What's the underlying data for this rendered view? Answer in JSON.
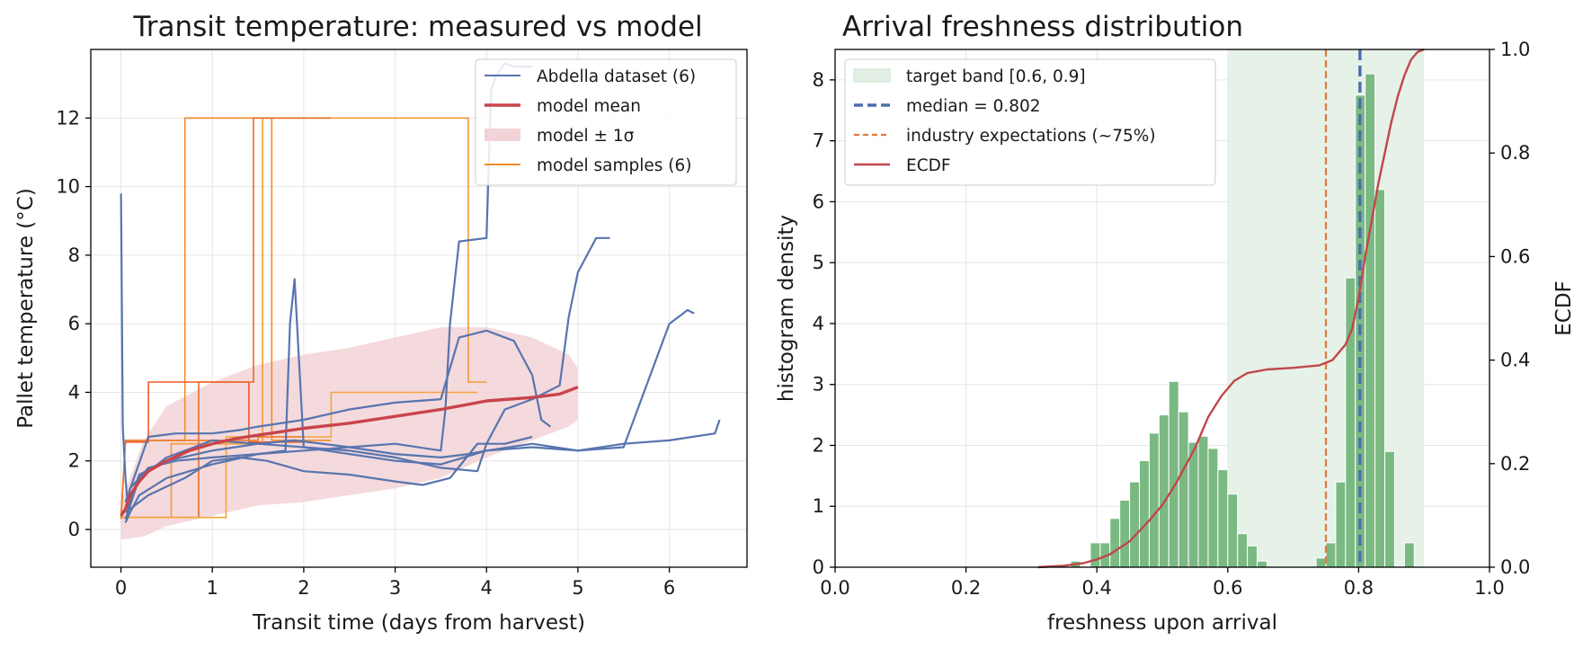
{
  "chart_data": [
    {
      "type": "line",
      "title": "Transit temperature: measured vs model",
      "xlabel": "Transit time (days from harvest)",
      "ylabel": "Pallet temperature (°C)",
      "xlim": [
        -0.33,
        6.85
      ],
      "ylim": [
        -1.1,
        14.0
      ],
      "xticks": [
        0,
        1,
        2,
        3,
        4,
        5,
        6
      ],
      "yticks": [
        0,
        2,
        4,
        6,
        8,
        10,
        12
      ],
      "grid": true,
      "legend_position": "top-right",
      "legend": [
        {
          "label": "Abdella dataset (6)",
          "kind": "thin-line",
          "color": "#5874ae"
        },
        {
          "label": "model mean",
          "kind": "thick-line",
          "color": "#c8444b"
        },
        {
          "label": "model ± 1σ",
          "kind": "patch",
          "color": "#f2d3d7"
        },
        {
          "label": "model samples (6)",
          "kind": "thin-line",
          "color": "#f28c28"
        }
      ],
      "colors": {
        "measured": "#5874ae",
        "mean": "#c8444b",
        "band": "#f2d3d7",
        "samples": [
          "#f28c28",
          "#ec5a2a",
          "#f59a34",
          "#e86a26",
          "#f4a53c",
          "#ef7a2a"
        ]
      },
      "band": {
        "x": [
          0,
          0.25,
          0.5,
          1.0,
          1.5,
          2.0,
          2.5,
          3.0,
          3.5,
          4.0,
          4.5,
          4.9,
          5.0
        ],
        "lower": [
          -0.3,
          -0.2,
          0.1,
          0.4,
          0.7,
          0.8,
          1.0,
          1.2,
          1.5,
          2.1,
          2.6,
          3.0,
          3.2
        ],
        "upper": [
          0.8,
          2.6,
          3.6,
          4.3,
          4.8,
          5.1,
          5.3,
          5.6,
          5.9,
          5.9,
          5.6,
          5.1,
          4.7
        ]
      },
      "mean": {
        "x": [
          0,
          0.05,
          0.1,
          0.2,
          0.3,
          0.5,
          0.75,
          1.0,
          1.25,
          1.5,
          2.0,
          2.5,
          3.0,
          3.5,
          4.0,
          4.5,
          4.8,
          5.0
        ],
        "y": [
          0.4,
          0.6,
          1.0,
          1.4,
          1.7,
          2.0,
          2.3,
          2.5,
          2.65,
          2.75,
          2.95,
          3.1,
          3.3,
          3.5,
          3.75,
          3.85,
          3.95,
          4.15
        ]
      },
      "measured": [
        {
          "x": [
            0,
            0.02,
            0.05,
            0.08,
            0.1,
            0.2,
            0.5,
            1.0,
            1.5,
            1.9,
            2.5,
            3.0,
            3.5,
            3.8,
            4.0,
            4.5,
            5.0,
            5.5,
            6.0,
            6.5,
            6.55
          ],
          "y": [
            9.8,
            3.0,
            1.5,
            0.5,
            0.8,
            1.6,
            2.0,
            2.3,
            2.5,
            2.6,
            2.4,
            2.2,
            2.1,
            2.2,
            2.3,
            2.4,
            2.3,
            2.5,
            2.6,
            2.8,
            3.2
          ]
        },
        {
          "x": [
            0.05,
            0.1,
            0.3,
            0.6,
            1.0,
            1.5,
            2.0,
            2.5,
            3.0,
            3.5,
            3.55,
            3.6,
            3.7,
            4.0,
            4.05,
            4.1,
            4.2,
            4.3,
            4.5
          ],
          "y": [
            0.6,
            1.2,
            1.8,
            2.0,
            2.1,
            2.2,
            2.3,
            2.4,
            2.5,
            2.3,
            3.5,
            6.0,
            8.4,
            8.5,
            12.8,
            13.2,
            13.6,
            13.5,
            13.5
          ]
        },
        {
          "x": [
            0.05,
            0.2,
            0.5,
            1.0,
            1.5,
            2.0,
            2.5,
            3.0,
            3.5,
            3.9,
            4.0,
            4.2,
            4.5,
            4.8,
            4.9,
            5.0,
            5.2,
            5.35
          ],
          "y": [
            0.3,
            1.5,
            2.1,
            2.6,
            2.5,
            2.4,
            2.3,
            2.1,
            1.8,
            1.7,
            2.5,
            3.5,
            3.8,
            4.2,
            6.2,
            7.5,
            8.5,
            8.5
          ]
        },
        {
          "x": [
            0.05,
            0.1,
            0.2,
            0.5,
            1.0,
            1.5,
            1.8,
            1.85,
            1.9,
            2.0,
            2.5,
            3.0,
            3.5,
            4.0,
            4.5,
            5.0,
            5.5,
            6.0,
            6.2,
            6.27
          ],
          "y": [
            0.2,
            0.5,
            1.0,
            1.5,
            1.9,
            2.2,
            2.3,
            6.0,
            7.3,
            2.4,
            2.2,
            2.0,
            1.9,
            2.3,
            2.5,
            2.3,
            2.4,
            6.0,
            6.4,
            6.3
          ]
        },
        {
          "x": [
            0.05,
            0.3,
            0.6,
            1.0,
            1.3,
            1.5,
            2.0,
            2.5,
            3.0,
            3.5,
            3.7,
            4.0,
            4.3,
            4.5,
            4.6,
            4.7
          ],
          "y": [
            0.8,
            2.7,
            2.8,
            2.8,
            2.9,
            3.0,
            3.2,
            3.5,
            3.7,
            3.8,
            5.6,
            5.8,
            5.5,
            4.5,
            3.2,
            3.0
          ]
        },
        {
          "x": [
            0.05,
            0.3,
            0.7,
            1.0,
            1.3,
            1.6,
            2.0,
            2.5,
            3.0,
            3.3,
            3.6,
            3.9,
            4.2,
            4.5
          ],
          "y": [
            0.5,
            1.0,
            1.5,
            2.0,
            2.1,
            2.0,
            1.7,
            1.6,
            1.4,
            1.3,
            1.5,
            2.5,
            2.5,
            2.7
          ]
        }
      ],
      "samples": [
        {
          "x": [
            0,
            0.05,
            0.7,
            0.7,
            1.65,
            1.65,
            2.3
          ],
          "y": [
            0.3,
            2.6,
            2.6,
            12.0,
            12.0,
            2.6,
            2.6
          ]
        },
        {
          "x": [
            0,
            0.05,
            0.3,
            0.3,
            1.4,
            1.4,
            2.0
          ],
          "y": [
            0.35,
            2.55,
            2.55,
            4.3,
            4.3,
            2.55,
            2.55
          ]
        },
        {
          "x": [
            0,
            0.05,
            0.55,
            0.55,
            1.55,
            1.55,
            3.8,
            3.8,
            4.0
          ],
          "y": [
            0.35,
            0.35,
            0.35,
            2.5,
            2.5,
            12.0,
            12.0,
            4.3,
            4.3
          ]
        },
        {
          "x": [
            0,
            0.1,
            0.85,
            0.85,
            1.45,
            1.45,
            2.3
          ],
          "y": [
            0.35,
            0.35,
            0.35,
            4.3,
            4.3,
            12.0,
            12.0
          ]
        },
        {
          "x": [
            0,
            0.05,
            1.15,
            1.15,
            2.3,
            2.3,
            3.9
          ],
          "y": [
            0.35,
            0.35,
            0.35,
            2.7,
            2.7,
            4.0,
            4.0
          ]
        },
        {
          "x": [
            0,
            0.05,
            0.5,
            0.5,
            1.5,
            1.5,
            2.0
          ],
          "y": [
            0.35,
            2.6,
            2.6,
            2.6,
            2.6,
            2.7,
            2.7
          ]
        }
      ]
    },
    {
      "type": "bar",
      "title": "Arrival freshness distribution",
      "xlabel": "freshness upon arrival",
      "ylabel": "histogram density",
      "y2label": "ECDF",
      "xlim": [
        0.0,
        1.0
      ],
      "ylim": [
        0,
        8.5
      ],
      "y2lim": [
        0,
        1.0
      ],
      "xticks": [
        0.0,
        0.2,
        0.4,
        0.6,
        0.8,
        1.0
      ],
      "yticks": [
        0,
        1,
        2,
        3,
        4,
        5,
        6,
        7,
        8
      ],
      "y2ticks": [
        0.0,
        0.2,
        0.4,
        0.6,
        0.8,
        1.0
      ],
      "grid": true,
      "legend_position": "top-left",
      "legend": [
        {
          "label": "target band [0.6, 0.9]",
          "kind": "patch",
          "color": "#e3efe4"
        },
        {
          "label": "median = 0.802",
          "kind": "dashed-thick",
          "color": "#4a6fae"
        },
        {
          "label": "industry expectations (~75%)",
          "kind": "dashed",
          "color": "#e07a3f"
        },
        {
          "label": "ECDF",
          "kind": "line",
          "color": "#c0474b"
        }
      ],
      "colors": {
        "bars": "#7bb983",
        "band": "#e3efe4",
        "median": "#4a6fae",
        "industry": "#e07a3f",
        "ecdf": "#c0474b"
      },
      "target_band": [
        0.6,
        0.9
      ],
      "median": 0.802,
      "industry": 0.75,
      "bin_width": 0.015,
      "bins": [
        {
          "x": 0.36,
          "y": 0.1
        },
        {
          "x": 0.39,
          "y": 0.4
        },
        {
          "x": 0.405,
          "y": 0.4
        },
        {
          "x": 0.42,
          "y": 0.8
        },
        {
          "x": 0.435,
          "y": 1.1
        },
        {
          "x": 0.45,
          "y": 1.4
        },
        {
          "x": 0.465,
          "y": 1.75
        },
        {
          "x": 0.48,
          "y": 2.2
        },
        {
          "x": 0.495,
          "y": 2.5
        },
        {
          "x": 0.51,
          "y": 3.05
        },
        {
          "x": 0.525,
          "y": 2.55
        },
        {
          "x": 0.54,
          "y": 2.05
        },
        {
          "x": 0.555,
          "y": 2.15
        },
        {
          "x": 0.57,
          "y": 1.95
        },
        {
          "x": 0.585,
          "y": 1.6
        },
        {
          "x": 0.6,
          "y": 1.2
        },
        {
          "x": 0.615,
          "y": 0.55
        },
        {
          "x": 0.63,
          "y": 0.35
        },
        {
          "x": 0.645,
          "y": 0.1
        },
        {
          "x": 0.735,
          "y": 0.15
        },
        {
          "x": 0.75,
          "y": 0.4
        },
        {
          "x": 0.765,
          "y": 1.4
        },
        {
          "x": 0.78,
          "y": 4.75
        },
        {
          "x": 0.795,
          "y": 7.75
        },
        {
          "x": 0.81,
          "y": 8.1
        },
        {
          "x": 0.825,
          "y": 6.2
        },
        {
          "x": 0.84,
          "y": 1.9
        },
        {
          "x": 0.87,
          "y": 0.4
        }
      ],
      "ecdf": {
        "x": [
          0.31,
          0.35,
          0.38,
          0.4,
          0.42,
          0.45,
          0.48,
          0.5,
          0.52,
          0.55,
          0.57,
          0.59,
          0.61,
          0.63,
          0.66,
          0.7,
          0.74,
          0.76,
          0.78,
          0.79,
          0.8,
          0.81,
          0.82,
          0.83,
          0.84,
          0.85,
          0.86,
          0.87,
          0.88,
          0.89,
          0.9
        ],
        "y": [
          0.0,
          0.003,
          0.008,
          0.015,
          0.025,
          0.05,
          0.09,
          0.12,
          0.16,
          0.23,
          0.29,
          0.33,
          0.36,
          0.375,
          0.382,
          0.385,
          0.39,
          0.4,
          0.43,
          0.46,
          0.52,
          0.6,
          0.67,
          0.74,
          0.8,
          0.86,
          0.91,
          0.95,
          0.98,
          0.995,
          1.0
        ]
      }
    }
  ]
}
